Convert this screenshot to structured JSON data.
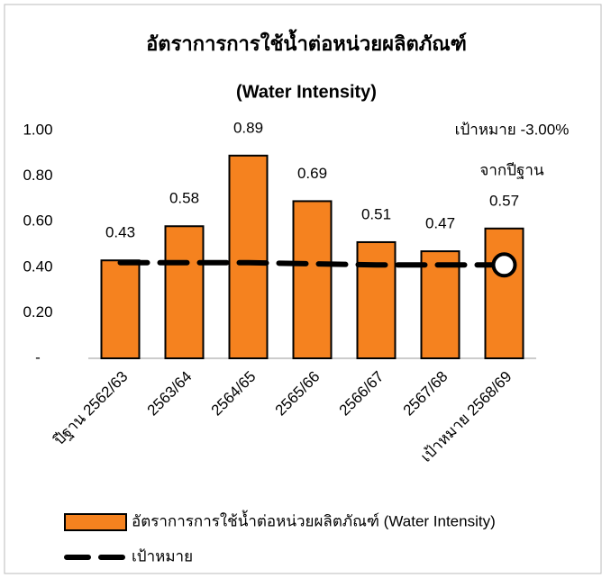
{
  "chart_data": {
    "type": "bar_line",
    "title": "อัตราการการใช้น้ำต่อหน่วยผลิตภัณฑ์",
    "subtitle": "(Water Intensity)",
    "annotation": [
      "เป้าหมาย -3.00%",
      "จากปีฐาน"
    ],
    "categories": [
      "ปีฐาน 2562/63",
      "2563/64",
      "2564/65",
      "2565/66",
      "2566/67",
      "2567/68",
      "เป้าหมาย 2568/69"
    ],
    "series": [
      {
        "name": "อัตราการการใช้น้ำต่อหน่วยผลิตภัณฑ์ (Water Intensity)",
        "type": "bar",
        "color": "#f5821f",
        "values": [
          0.43,
          0.58,
          0.89,
          0.69,
          0.51,
          0.47,
          0.57
        ],
        "value_labels": [
          "0.43",
          "0.58",
          "0.89",
          "0.69",
          "0.51",
          "0.47",
          "0.57"
        ]
      },
      {
        "name": "เป้าหมาย",
        "type": "line",
        "color": "#000000",
        "values": [
          0.42,
          0.42,
          0.42,
          0.415,
          0.41,
          0.41,
          0.41
        ]
      }
    ],
    "ylim": [
      0,
      1
    ],
    "yticks": [
      {
        "value": 0,
        "label": "-"
      },
      {
        "value": 0.2,
        "label": "0.20"
      },
      {
        "value": 0.4,
        "label": "0.40"
      },
      {
        "value": 0.6,
        "label": "0.60"
      },
      {
        "value": 0.8,
        "label": "0.80"
      },
      {
        "value": 1,
        "label": "1.00"
      }
    ],
    "grid": false
  }
}
